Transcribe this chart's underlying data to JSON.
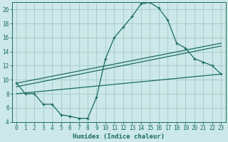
{
  "xlabel": "Humidex (Indice chaleur)",
  "bg_color": "#cce8e8",
  "grid_color": "#aacccc",
  "line_color": "#1a6b60",
  "xlim": [
    -0.5,
    23.5
  ],
  "ylim": [
    4,
    21
  ],
  "yticks": [
    4,
    6,
    8,
    10,
    12,
    14,
    16,
    18,
    20
  ],
  "xticks": [
    0,
    1,
    2,
    3,
    4,
    5,
    6,
    7,
    8,
    9,
    10,
    11,
    12,
    13,
    14,
    15,
    16,
    17,
    18,
    19,
    20,
    21,
    22,
    23
  ],
  "curve1_x": [
    0,
    1,
    2,
    3,
    4,
    5,
    6,
    7,
    8,
    9,
    10,
    11,
    12,
    13,
    14,
    15,
    16,
    17,
    18,
    19,
    20,
    21,
    22,
    23
  ],
  "curve1_y": [
    9.5,
    8.0,
    8.0,
    6.5,
    6.5,
    5.0,
    4.8,
    4.5,
    4.5,
    7.5,
    13.0,
    16.0,
    17.5,
    19.0,
    20.8,
    21.0,
    20.2,
    18.5,
    15.2,
    14.5,
    13.0,
    12.5,
    12.0,
    10.8
  ],
  "line2_x": [
    0,
    23
  ],
  "line2_y": [
    9.0,
    14.8
  ],
  "line3_x": [
    0,
    23
  ],
  "line3_y": [
    9.5,
    15.2
  ],
  "line4_x": [
    0,
    23
  ],
  "line4_y": [
    8.0,
    10.8
  ]
}
